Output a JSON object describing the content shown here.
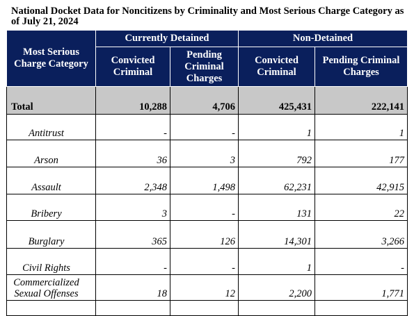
{
  "title": "National Docket Data for Noncitizens by Criminality and Most Serious Charge Category as of July 21, 2024",
  "headers": {
    "category": "Most Serious Charge Category",
    "group_detained": "Currently Detained",
    "group_non_detained": "Non-Detained",
    "detained_convicted": "Convicted Criminal",
    "detained_pending": "Pending Criminal Charges",
    "non_detained_convicted": "Convicted Criminal",
    "non_detained_pending": "Pending Criminal Charges"
  },
  "total": {
    "label": "Total",
    "detained_convicted": "10,288",
    "detained_pending": "4,706",
    "non_detained_convicted": "425,431",
    "non_detained_pending": "222,141"
  },
  "rows": [
    {
      "label": "Antitrust",
      "detained_convicted": "-",
      "detained_pending": "-",
      "non_detained_convicted": "1",
      "non_detained_pending": "1"
    },
    {
      "label": "Arson",
      "detained_convicted": "36",
      "detained_pending": "3",
      "non_detained_convicted": "792",
      "non_detained_pending": "177"
    },
    {
      "label": "Assault",
      "detained_convicted": "2,348",
      "detained_pending": "1,498",
      "non_detained_convicted": "62,231",
      "non_detained_pending": "42,915"
    },
    {
      "label": "Bribery",
      "detained_convicted": "3",
      "detained_pending": "-",
      "non_detained_convicted": "131",
      "non_detained_pending": "22"
    },
    {
      "label": "Burglary",
      "detained_convicted": "365",
      "detained_pending": "126",
      "non_detained_convicted": "14,301",
      "non_detained_pending": "3,266"
    },
    {
      "label": "Civil Rights",
      "detained_convicted": "-",
      "detained_pending": "-",
      "non_detained_convicted": "1",
      "non_detained_pending": "-"
    },
    {
      "label": "Commercialized Sexual Offenses",
      "detained_convicted": "18",
      "detained_pending": "12",
      "non_detained_convicted": "2,200",
      "non_detained_pending": "1,771"
    },
    {
      "label": "",
      "detained_convicted": "",
      "detained_pending": "",
      "non_detained_convicted": "",
      "non_detained_pending": ""
    }
  ]
}
